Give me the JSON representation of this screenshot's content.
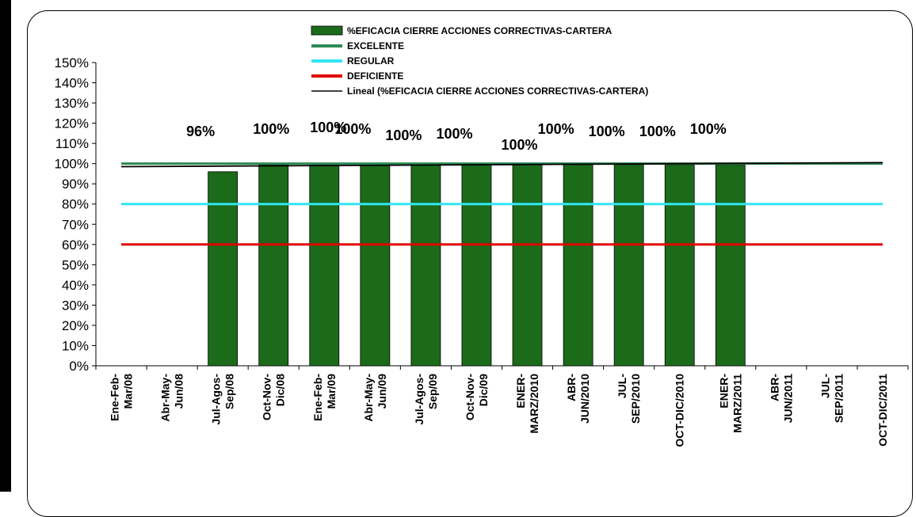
{
  "chart_data": {
    "type": "bar",
    "categories": [
      [
        "Ene-Feb-",
        "Mar/08"
      ],
      [
        "Abr-May-",
        "Jun/08"
      ],
      [
        "Jul-Agos-",
        "Sep/08"
      ],
      [
        "Oct-Nov-",
        "Dic/08"
      ],
      [
        "Ene-Feb-",
        "Mar/09"
      ],
      [
        "Abr-May-",
        "Jun/09"
      ],
      [
        "Jul-Agos-",
        "Sep/09"
      ],
      [
        "Oct-Nov-",
        "Dic/09"
      ],
      [
        "ENER-",
        "MARZ/2010"
      ],
      [
        "ABR-",
        "JUN/2010"
      ],
      [
        "JUL-",
        "SEP/2010"
      ],
      [
        "OCT-DIC/2010"
      ],
      [
        "ENER-",
        "MARZ/2011"
      ],
      [
        "ABR-",
        "JUN/2011"
      ],
      [
        "JUL-",
        "SEP/2011"
      ],
      [
        "OCT-DIC/2011"
      ]
    ],
    "series": [
      {
        "name": "%EFICACIA CIERRE ACCIONES CORRECTIVAS-CARTERA",
        "values": [
          null,
          null,
          0.96,
          1.0,
          1.0,
          1.0,
          1.0,
          1.0,
          1.0,
          1.0,
          1.0,
          1.0,
          1.0,
          null,
          null,
          null
        ],
        "data_labels": [
          null,
          null,
          "96%",
          "100%",
          "100%",
          "100%",
          "100%",
          "100%",
          "100%",
          "100%",
          "100%",
          "100%",
          "100%",
          null,
          null,
          null
        ],
        "color": "#1b6b1b"
      },
      {
        "name": "EXCELENTE",
        "level": 1.0,
        "color": "#2e8b57"
      },
      {
        "name": "REGULAR",
        "level": 0.8,
        "color": "#33e6f2"
      },
      {
        "name": "DEFICIENTE",
        "level": 0.6,
        "color": "#e00000"
      },
      {
        "name": "Lineal (%EFICACIA CIERRE ACCIONES CORRECTIVAS-CARTERA)",
        "trend": [
          0.985,
          1.005
        ],
        "color": "#000000"
      }
    ],
    "y_ticks": [
      "0%",
      "10%",
      "20%",
      "30%",
      "40%",
      "50%",
      "60%",
      "70%",
      "80%",
      "90%",
      "100%",
      "110%",
      "120%",
      "130%",
      "140%",
      "150%"
    ],
    "ylim": [
      0,
      1.5
    ],
    "legend_position": "top-center",
    "grid": false
  }
}
